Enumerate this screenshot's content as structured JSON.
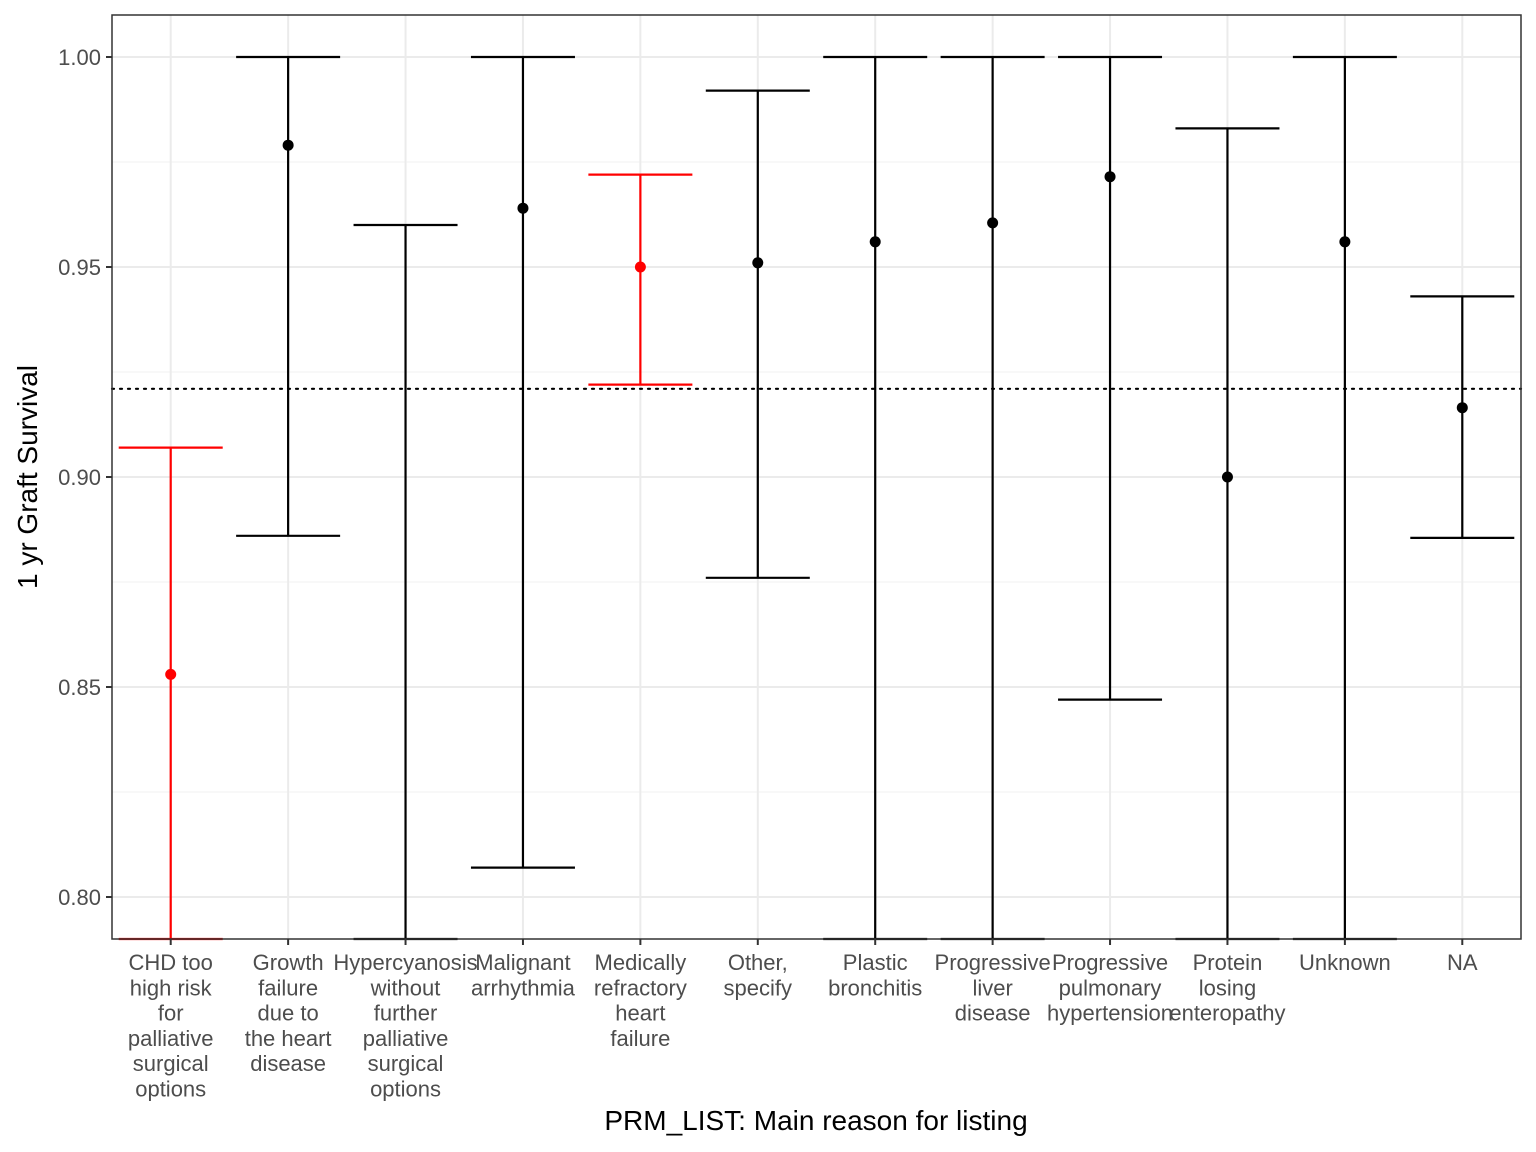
{
  "chart_data": {
    "type": "errorbar",
    "xlabel": "PRM_LIST: Main reason for listing",
    "ylabel": "1 yr Graft Survival",
    "ylim": [
      0.79,
      1.01
    ],
    "yticks": [
      0.8,
      0.85,
      0.9,
      0.95,
      1.0
    ],
    "ytick_labels": [
      "0.80",
      "0.85",
      "0.90",
      "0.95",
      "1.00"
    ],
    "reference_line": {
      "value": 0.921,
      "style": "dotted",
      "color": "#000000"
    },
    "grid": true,
    "colors": {
      "highlight": "#ff0000",
      "default": "#000000"
    },
    "categories": [
      {
        "label": [
          "CHD too",
          "high risk",
          "for",
          "palliative",
          "surgical",
          "options"
        ],
        "estimate": 0.853,
        "lower": 0.79,
        "upper": 0.907,
        "highlight": true
      },
      {
        "label": [
          "Growth",
          "failure",
          "due to",
          "the heart",
          "disease"
        ],
        "estimate": 0.979,
        "lower": 0.886,
        "upper": 1.0,
        "highlight": false
      },
      {
        "label": [
          "Hypercyanosis",
          "without",
          "further",
          "palliative",
          "surgical",
          "options"
        ],
        "estimate": null,
        "lower": 0.79,
        "upper": 0.96,
        "highlight": false
      },
      {
        "label": [
          "Malignant",
          "arrhythmia"
        ],
        "estimate": 0.964,
        "lower": 0.807,
        "upper": 1.0,
        "highlight": false
      },
      {
        "label": [
          "Medically",
          "refractory",
          "heart",
          "failure"
        ],
        "estimate": 0.95,
        "lower": 0.922,
        "upper": 0.972,
        "highlight": true
      },
      {
        "label": [
          "Other,",
          "specify"
        ],
        "estimate": 0.951,
        "lower": 0.876,
        "upper": 0.992,
        "highlight": false
      },
      {
        "label": [
          "Plastic",
          "bronchitis"
        ],
        "estimate": 0.956,
        "lower": 0.79,
        "upper": 1.0,
        "highlight": false
      },
      {
        "label": [
          "Progressive",
          "liver",
          "disease"
        ],
        "estimate": 0.9605,
        "lower": 0.79,
        "upper": 1.0,
        "highlight": false
      },
      {
        "label": [
          "Progressive",
          "pulmonary",
          "hypertension"
        ],
        "estimate": 0.9715,
        "lower": 0.847,
        "upper": 1.0,
        "highlight": false
      },
      {
        "label": [
          "Protein",
          "losing",
          "enteropathy"
        ],
        "estimate": 0.9,
        "lower": 0.79,
        "upper": 0.983,
        "highlight": false
      },
      {
        "label": [
          "Unknown"
        ],
        "estimate": 0.956,
        "lower": 0.79,
        "upper": 1.0,
        "highlight": false
      },
      {
        "label": [
          "NA"
        ],
        "estimate": 0.9165,
        "lower": 0.8855,
        "upper": 0.943,
        "highlight": false
      }
    ]
  }
}
